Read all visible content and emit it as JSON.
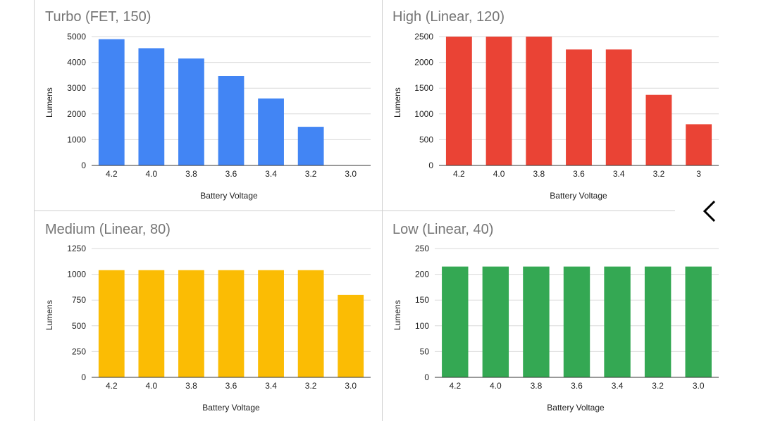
{
  "colors": {
    "turbo": "#4285f4",
    "high": "#ea4335",
    "medium": "#fbbc04",
    "low": "#34a853",
    "grid": "#d9d9d9",
    "axis": "#333333"
  },
  "nav": {
    "back_icon": "chevron-left-icon"
  },
  "chart_data": [
    {
      "type": "bar",
      "title": "Turbo (FET, 150)",
      "xlabel": "Battery Voltage",
      "ylabel": "Lumens",
      "categories": [
        "4.2",
        "4.0",
        "3.8",
        "3.6",
        "3.4",
        "3.2",
        "3.0"
      ],
      "values": [
        4900,
        4550,
        4150,
        3470,
        2600,
        1500,
        0
      ],
      "yticks": [
        "0",
        "1000",
        "2000",
        "3000",
        "4000",
        "5000"
      ],
      "ylim": [
        0,
        5000
      ],
      "grid": true,
      "color": "#4285f4"
    },
    {
      "type": "bar",
      "title": "High (Linear, 120)",
      "xlabel": "Battery Voltage",
      "ylabel": "Lumens",
      "categories": [
        "4.2",
        "4.0",
        "3.8",
        "3.6",
        "3.4",
        "3.2",
        "3"
      ],
      "values": [
        2500,
        2500,
        2500,
        2250,
        2250,
        1370,
        800
      ],
      "yticks": [
        "0",
        "500",
        "1000",
        "1500",
        "2000",
        "2500"
      ],
      "ylim": [
        0,
        2500
      ],
      "grid": true,
      "color": "#ea4335"
    },
    {
      "type": "bar",
      "title": "Medium (Linear, 80)",
      "xlabel": "Battery Voltage",
      "ylabel": "Lumens",
      "categories": [
        "4.2",
        "4.0",
        "3.8",
        "3.6",
        "3.4",
        "3.2",
        "3.0"
      ],
      "values": [
        1040,
        1040,
        1040,
        1040,
        1040,
        1040,
        800
      ],
      "yticks": [
        "0",
        "250",
        "500",
        "750",
        "1000",
        "1250"
      ],
      "ylim": [
        0,
        1250
      ],
      "grid": true,
      "color": "#fbbc04"
    },
    {
      "type": "bar",
      "title": "Low (Linear, 40)",
      "xlabel": "Battery Voltage",
      "ylabel": "Lumens",
      "categories": [
        "4.2",
        "4.0",
        "3.8",
        "3.6",
        "3.4",
        "3.2",
        "3.0"
      ],
      "values": [
        215,
        215,
        215,
        215,
        215,
        215,
        215
      ],
      "yticks": [
        "0",
        "50",
        "100",
        "150",
        "200",
        "250"
      ],
      "ylim": [
        0,
        250
      ],
      "grid": true,
      "color": "#34a853"
    }
  ]
}
